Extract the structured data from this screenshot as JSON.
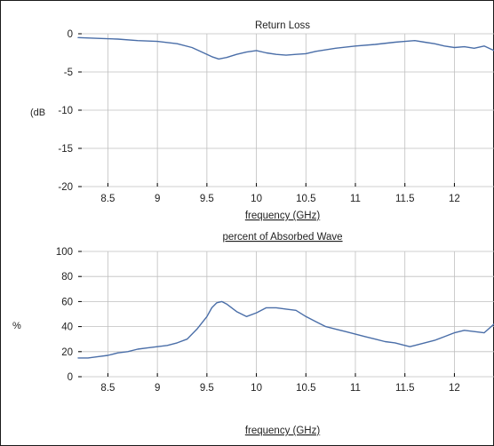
{
  "chart_data": [
    {
      "type": "line",
      "title": "Return Loss",
      "xlabel": "frequency (GHz)",
      "ylabel": "(dB",
      "xlim": [
        8.2,
        12.4
      ],
      "ylim": [
        -20,
        0
      ],
      "x_ticks": [
        "8.5",
        "9",
        "9.5",
        "10",
        "10.5",
        "11",
        "11.5",
        "12"
      ],
      "y_ticks": [
        "0",
        "-5",
        "-10",
        "-15",
        "-20"
      ],
      "grid": true,
      "line_color": "#4a6ea8",
      "series": [
        {
          "x": [
            8.2,
            8.4,
            8.6,
            8.8,
            9.0,
            9.2,
            9.35,
            9.45,
            9.55,
            9.62,
            9.7,
            9.8,
            9.9,
            10.0,
            10.1,
            10.2,
            10.3,
            10.4,
            10.5,
            10.6,
            10.8,
            11.0,
            11.2,
            11.4,
            11.5,
            11.6,
            11.7,
            11.8,
            11.9,
            12.0,
            12.1,
            12.2,
            12.3,
            12.4
          ],
          "y": [
            -0.5,
            -0.6,
            -0.7,
            -0.9,
            -1.0,
            -1.3,
            -1.8,
            -2.4,
            -3.0,
            -3.3,
            -3.1,
            -2.7,
            -2.4,
            -2.2,
            -2.5,
            -2.7,
            -2.8,
            -2.7,
            -2.6,
            -2.3,
            -1.9,
            -1.6,
            -1.4,
            -1.1,
            -1.0,
            -0.9,
            -1.1,
            -1.3,
            -1.6,
            -1.8,
            -1.7,
            -1.9,
            -1.6,
            -2.2
          ]
        }
      ]
    },
    {
      "type": "line",
      "title": "percent of Absorbed Wave",
      "xlabel": "frequency (GHz)",
      "ylabel": "%",
      "xlim": [
        8.2,
        12.4
      ],
      "ylim": [
        0,
        100
      ],
      "x_ticks": [
        "8.5",
        "9",
        "9.5",
        "10",
        "10.5",
        "11",
        "11.5",
        "12"
      ],
      "y_ticks": [
        "100",
        "80",
        "60",
        "40",
        "20",
        "0"
      ],
      "grid": true,
      "line_color": "#4a6ea8",
      "series": [
        {
          "x": [
            8.2,
            8.3,
            8.4,
            8.5,
            8.6,
            8.7,
            8.8,
            8.9,
            9.0,
            9.1,
            9.2,
            9.3,
            9.4,
            9.5,
            9.55,
            9.6,
            9.65,
            9.7,
            9.8,
            9.9,
            10.0,
            10.1,
            10.2,
            10.3,
            10.4,
            10.5,
            10.6,
            10.7,
            10.8,
            10.9,
            11.0,
            11.1,
            11.2,
            11.3,
            11.4,
            11.5,
            11.55,
            11.6,
            11.7,
            11.8,
            11.9,
            12.0,
            12.1,
            12.2,
            12.3,
            12.4
          ],
          "y": [
            15,
            15,
            16,
            17,
            19,
            20,
            22,
            23,
            24,
            25,
            27,
            30,
            38,
            48,
            55,
            59,
            60,
            58,
            52,
            48,
            51,
            55,
            55,
            54,
            53,
            48,
            44,
            40,
            38,
            36,
            34,
            32,
            30,
            28,
            27,
            25,
            24,
            25,
            27,
            29,
            32,
            35,
            37,
            36,
            35,
            42
          ]
        }
      ]
    }
  ]
}
